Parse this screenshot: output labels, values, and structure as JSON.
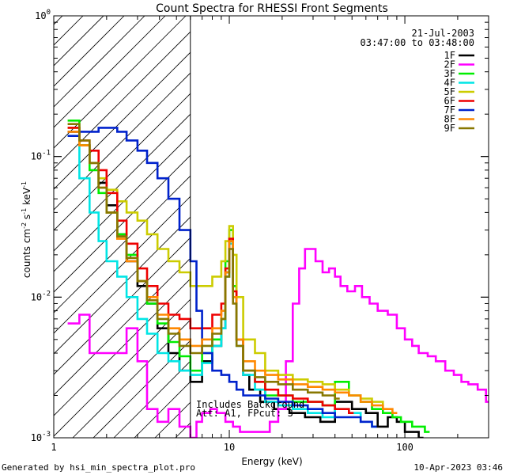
{
  "chart_data": {
    "type": "line",
    "title": "Count Spectra for RHESSI Front Segments",
    "xlabel": "Energy (keV)",
    "ylabel": "counts cm-2 s-1 keV-1",
    "xscale": "log",
    "yscale": "log",
    "xlim": [
      1,
      300
    ],
    "ylim": [
      0.001,
      1
    ],
    "x_ticks": [
      {
        "value": 1,
        "label": "1"
      },
      {
        "value": 10,
        "label": "10"
      },
      {
        "value": 100,
        "label": "100"
      }
    ],
    "y_ticks": [
      {
        "value": 0.001,
        "mantissa": "10",
        "exp": "-3"
      },
      {
        "value": 0.01,
        "mantissa": "10",
        "exp": "-2"
      },
      {
        "value": 0.1,
        "mantissa": "10",
        "exp": "-1"
      },
      {
        "value": 1,
        "mantissa": "10",
        "exp": "0"
      }
    ],
    "date": "21-Jul-2003",
    "time_range": "03:47:00 to 03:48:00",
    "hatched_below_keV": 6,
    "annotation_line1": "Includes Background",
    "annotation_line2": "Att: A1,  FPcut: 3",
    "series": [
      {
        "name": "1F",
        "color": "#000000",
        "x": [
          1.2,
          1.4,
          1.6,
          1.8,
          2.0,
          2.3,
          2.6,
          3.0,
          3.4,
          3.9,
          4.5,
          5.2,
          6.0,
          7.0,
          8.0,
          9.0,
          9.5,
          10,
          10.5,
          11,
          12,
          13,
          15,
          18,
          22,
          27,
          33,
          40,
          50,
          60,
          70,
          80,
          90,
          100,
          120
        ],
        "y": [
          0.15,
          0.12,
          0.09,
          0.065,
          0.045,
          0.028,
          0.018,
          0.012,
          0.009,
          0.006,
          0.004,
          0.003,
          0.0025,
          0.0035,
          0.0045,
          0.006,
          0.015,
          0.025,
          0.012,
          0.005,
          0.0028,
          0.0022,
          0.0018,
          0.0016,
          0.0015,
          0.0014,
          0.0013,
          0.0018,
          0.0016,
          0.0015,
          0.0012,
          0.0014,
          0.0013,
          0.0011,
          0.001
        ]
      },
      {
        "name": "2F",
        "color": "#ff00ff",
        "x": [
          1.2,
          1.4,
          1.6,
          1.8,
          2.0,
          2.3,
          2.6,
          3.0,
          3.4,
          3.9,
          4.5,
          5.2,
          6.0,
          6.5,
          7.0,
          7.8,
          8.5,
          9.5,
          10.5,
          11.5,
          13,
          15,
          17,
          19,
          21,
          23,
          25,
          27,
          29,
          31,
          34,
          37,
          40,
          43,
          47,
          52,
          57,
          63,
          70,
          80,
          90,
          100,
          110,
          120,
          135,
          150,
          170,
          190,
          210,
          230,
          260,
          290,
          310
        ],
        "y": [
          0.0065,
          0.0075,
          0.004,
          0.004,
          0.004,
          0.004,
          0.006,
          0.0035,
          0.0016,
          0.0013,
          0.0016,
          0.0012,
          0.001,
          0.0013,
          0.0015,
          0.0016,
          0.0015,
          0.0013,
          0.0012,
          0.0011,
          0.0011,
          0.0011,
          0.0013,
          0.0016,
          0.0035,
          0.009,
          0.016,
          0.022,
          0.022,
          0.018,
          0.015,
          0.016,
          0.014,
          0.012,
          0.011,
          0.012,
          0.01,
          0.009,
          0.008,
          0.0075,
          0.006,
          0.005,
          0.0045,
          0.004,
          0.0038,
          0.0035,
          0.003,
          0.0028,
          0.0025,
          0.0024,
          0.0022,
          0.0018,
          0.0015
        ]
      },
      {
        "name": "3F",
        "color": "#00ee00",
        "x": [
          1.2,
          1.4,
          1.6,
          1.8,
          2.0,
          2.3,
          2.6,
          3.0,
          3.4,
          3.9,
          4.5,
          5.2,
          6.0,
          7.0,
          8.0,
          9.0,
          9.5,
          10,
          10.5,
          11,
          12,
          14,
          16,
          19,
          23,
          28,
          34,
          40,
          48,
          56,
          65,
          75,
          85,
          95,
          110,
          130
        ],
        "y": [
          0.18,
          0.12,
          0.08,
          0.055,
          0.04,
          0.028,
          0.02,
          0.013,
          0.009,
          0.0065,
          0.0048,
          0.0038,
          0.003,
          0.004,
          0.005,
          0.007,
          0.018,
          0.03,
          0.012,
          0.005,
          0.003,
          0.0025,
          0.002,
          0.002,
          0.0018,
          0.0018,
          0.0017,
          0.0025,
          0.002,
          0.0018,
          0.0016,
          0.0015,
          0.0014,
          0.0013,
          0.0012,
          0.0011
        ]
      },
      {
        "name": "4F",
        "color": "#00e5e5",
        "x": [
          1.2,
          1.4,
          1.6,
          1.8,
          2.0,
          2.3,
          2.6,
          3.0,
          3.4,
          3.9,
          4.5,
          5.2,
          6.0,
          7.0,
          8.0,
          9.0,
          9.5,
          10,
          10.5,
          11,
          12,
          14,
          16,
          19,
          23,
          28,
          34,
          40,
          48,
          56,
          65
        ],
        "y": [
          0.14,
          0.07,
          0.04,
          0.025,
          0.018,
          0.014,
          0.01,
          0.007,
          0.0055,
          0.004,
          0.0035,
          0.003,
          0.0028,
          0.0034,
          0.0045,
          0.006,
          0.014,
          0.024,
          0.01,
          0.0045,
          0.0028,
          0.0022,
          0.0018,
          0.0017,
          0.0016,
          0.0015,
          0.0014,
          0.0016,
          0.0015,
          0.0013,
          0.0012
        ]
      },
      {
        "name": "5F",
        "color": "#cccc00",
        "x": [
          1.2,
          1.4,
          1.6,
          1.8,
          2.0,
          2.3,
          2.6,
          3.0,
          3.4,
          3.9,
          4.5,
          5.2,
          6.0,
          7.0,
          8.0,
          9.0,
          9.5,
          10,
          10.5,
          11,
          12,
          14,
          16,
          19,
          23,
          28,
          34,
          40,
          48,
          56,
          65,
          75
        ],
        "y": [
          0.16,
          0.12,
          0.09,
          0.07,
          0.058,
          0.048,
          0.04,
          0.035,
          0.028,
          0.022,
          0.018,
          0.015,
          0.012,
          0.012,
          0.014,
          0.018,
          0.025,
          0.032,
          0.02,
          0.01,
          0.005,
          0.004,
          0.003,
          0.0028,
          0.0026,
          0.0025,
          0.0024,
          0.0022,
          0.002,
          0.0019,
          0.0018,
          0.0016
        ]
      },
      {
        "name": "6F",
        "color": "#ee0000",
        "x": [
          1.2,
          1.4,
          1.6,
          1.8,
          2.0,
          2.3,
          2.6,
          3.0,
          3.4,
          3.9,
          4.5,
          5.2,
          6.0,
          7.0,
          8.0,
          9.0,
          9.5,
          10,
          10.5,
          11,
          12,
          14,
          16,
          19,
          23,
          28,
          34,
          40,
          48
        ],
        "y": [
          0.16,
          0.13,
          0.11,
          0.08,
          0.055,
          0.035,
          0.024,
          0.016,
          0.012,
          0.009,
          0.0075,
          0.007,
          0.006,
          0.006,
          0.0075,
          0.009,
          0.016,
          0.026,
          0.011,
          0.005,
          0.003,
          0.0025,
          0.0022,
          0.002,
          0.0019,
          0.0018,
          0.0017,
          0.0016,
          0.0015
        ]
      },
      {
        "name": "7F",
        "color": "#0022cc",
        "x": [
          1.2,
          1.4,
          1.6,
          1.8,
          2.0,
          2.3,
          2.6,
          3.0,
          3.4,
          3.9,
          4.5,
          5.2,
          6.0,
          6.5,
          7.0,
          8.0,
          9.0,
          10,
          11,
          12,
          14,
          16,
          19,
          23,
          28,
          34,
          40,
          48,
          56,
          65
        ],
        "y": [
          0.14,
          0.15,
          0.15,
          0.16,
          0.16,
          0.15,
          0.13,
          0.11,
          0.09,
          0.07,
          0.05,
          0.03,
          0.018,
          0.008,
          0.004,
          0.003,
          0.0028,
          0.0025,
          0.0022,
          0.002,
          0.002,
          0.0019,
          0.0018,
          0.0017,
          0.0016,
          0.0015,
          0.0014,
          0.0014,
          0.0013,
          0.0012
        ]
      },
      {
        "name": "8F",
        "color": "#ff8800",
        "x": [
          1.2,
          1.4,
          1.6,
          1.8,
          2.0,
          2.3,
          2.6,
          3.0,
          3.4,
          3.9,
          4.5,
          5.2,
          6.0,
          7.0,
          8.0,
          9.0,
          9.5,
          10,
          10.5,
          11,
          12,
          14,
          16,
          19,
          23,
          28,
          34,
          40,
          48,
          56,
          65,
          75,
          85
        ],
        "y": [
          0.15,
          0.12,
          0.09,
          0.06,
          0.04,
          0.026,
          0.018,
          0.013,
          0.01,
          0.0075,
          0.006,
          0.005,
          0.0045,
          0.005,
          0.006,
          0.008,
          0.015,
          0.025,
          0.01,
          0.005,
          0.0035,
          0.003,
          0.0028,
          0.0026,
          0.0024,
          0.0023,
          0.0022,
          0.0021,
          0.002,
          0.0018,
          0.0017,
          0.0016,
          0.0015
        ]
      },
      {
        "name": "9F",
        "color": "#887700",
        "x": [
          1.2,
          1.4,
          1.6,
          1.8,
          2.0,
          2.3,
          2.6,
          3.0,
          3.4,
          3.9,
          4.5,
          5.2,
          6.0,
          7.0,
          8.0,
          9.0,
          9.5,
          10,
          10.5,
          11,
          12,
          14,
          16,
          19,
          23,
          28,
          34,
          40
        ],
        "y": [
          0.17,
          0.13,
          0.09,
          0.06,
          0.04,
          0.027,
          0.019,
          0.013,
          0.0095,
          0.007,
          0.0055,
          0.0045,
          0.004,
          0.0045,
          0.0055,
          0.007,
          0.014,
          0.022,
          0.009,
          0.0045,
          0.003,
          0.0027,
          0.0025,
          0.0024,
          0.0022,
          0.0021,
          0.002,
          0.0019
        ]
      }
    ]
  },
  "footer": {
    "left": "Generated by hsi_min_spectra_plot.pro",
    "right": "10-Apr-2023 03:46"
  }
}
